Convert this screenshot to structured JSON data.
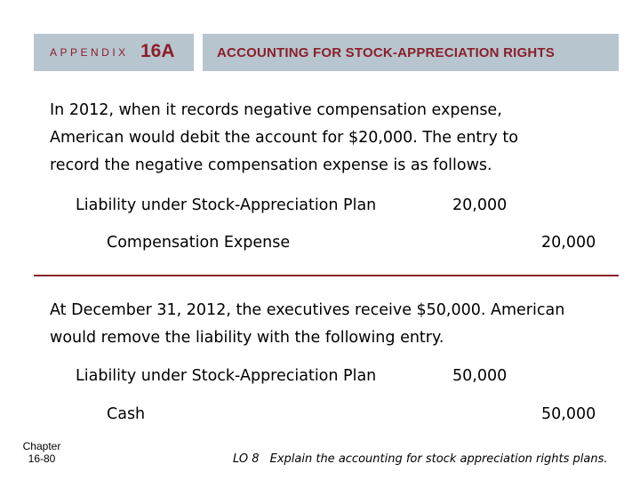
{
  "header": {
    "appendix_word": "APPENDIX",
    "appendix_number": "16A",
    "title": "ACCOUNTING FOR STOCK-APPRECIATION RIGHTS"
  },
  "paragraph1": {
    "line1": "In 2012, when it records negative compensation expense,",
    "line2": "American would debit the account for $20,000. The entry to",
    "line3": "record the negative compensation expense is as follows."
  },
  "entry1": {
    "debit_account": "Liability under Stock-Appreciation Plan",
    "debit_amount": "20,000",
    "credit_account": "Compensation Expense",
    "credit_amount": "20,000"
  },
  "paragraph2": {
    "line1": "At December 31, 2012, the executives receive $50,000. American",
    "line2": "would remove the liability with the following entry."
  },
  "entry2": {
    "debit_account": "Liability under Stock-Appreciation Plan",
    "debit_amount": "50,000",
    "credit_account": "Cash",
    "credit_amount": "50,000"
  },
  "footer": {
    "chapter_label": "Chapter",
    "page": "16-80",
    "lo_label": "LO 8",
    "lo_text": "Explain the accounting for stock appreciation rights plans."
  }
}
